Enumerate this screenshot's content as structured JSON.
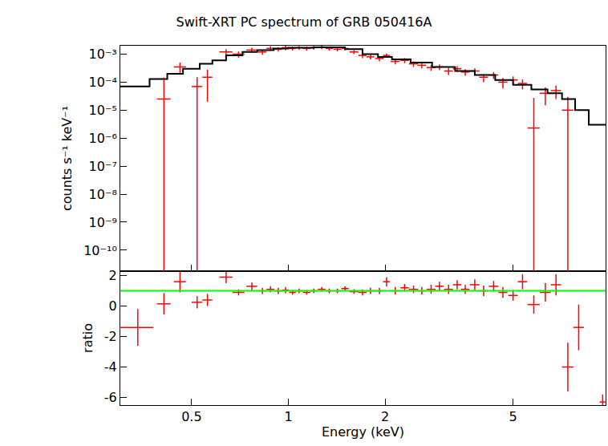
{
  "chart_data": [
    {
      "type": "scatter",
      "title": "Swift-XRT PC spectrum of GRB 050416A",
      "y_label": "counts s⁻¹ keV⁻¹",
      "log": true,
      "tick_labels": "y",
      "xlim": [
        0.3,
        9.7
      ],
      "ylim": [
        1.8e-11,
        0.002
      ],
      "xticks": [
        0.5,
        1,
        2,
        5
      ],
      "yticks": [
        {
          "value": 1e-10,
          "label": "10⁻¹⁰"
        },
        {
          "value": 1e-09,
          "label": "10⁻⁹"
        },
        {
          "value": 1e-08,
          "label": "10⁻⁸"
        },
        {
          "value": 1e-07,
          "label": "10⁻⁷"
        },
        {
          "value": 1e-06,
          "label": "10⁻⁶"
        },
        {
          "value": 1e-05,
          "label": "10⁻⁵"
        },
        {
          "value": 0.0001,
          "label": "10⁻⁴"
        },
        {
          "value": 0.001,
          "label": "10⁻³"
        }
      ],
      "series": [
        {
          "type": "scatter",
          "marker": "cross",
          "color": "#ff0000",
          "x": [
            0.41,
            0.46,
            0.52,
            0.56,
            0.64,
            0.7,
            0.77,
            0.83,
            0.88,
            0.93,
            0.98,
            1.03,
            1.08,
            1.14,
            1.2,
            1.27,
            1.34,
            1.42,
            1.5,
            1.6,
            1.7,
            1.8,
            1.92,
            2.02,
            2.15,
            2.3,
            2.45,
            2.6,
            2.78,
            2.95,
            3.15,
            3.35,
            3.55,
            3.8,
            4.05,
            4.35,
            4.65,
            5.0,
            5.35,
            5.8,
            6.3,
            6.8,
            7.4
          ],
          "values": [
            2.5e-05,
            0.00035,
            7e-05,
            0.00015,
            0.0012,
            0.001,
            0.0014,
            0.0012,
            0.0016,
            0.0015,
            0.0017,
            0.0016,
            0.0017,
            0.0016,
            0.0017,
            0.0018,
            0.0016,
            0.0015,
            0.0016,
            0.0012,
            0.0009,
            0.0008,
            0.0007,
            0.0009,
            0.00055,
            0.0006,
            0.00045,
            0.0004,
            0.00033,
            0.00035,
            0.00025,
            0.0003,
            0.00023,
            0.00025,
            0.00015,
            0.00018,
            0.0001,
            0.00012,
            9e-05,
            2.3e-06,
            4e-05,
            5e-05,
            1e-05
          ],
          "y_error": [
            0.00012,
            0.00015,
            8e-05,
            0.00013,
            0.0003,
            0.00025,
            0.0003,
            0.00025,
            0.0003,
            0.00025,
            0.0003,
            0.00025,
            0.00025,
            0.00025,
            0.00025,
            0.0003,
            0.00025,
            0.00025,
            0.00025,
            0.0002,
            0.00018,
            0.00015,
            0.00014,
            0.00016,
            0.00012,
            0.00012,
            0.0001,
            9e-05,
            8e-05,
            8e-05,
            7e-05,
            7e-05,
            6e-05,
            6e-05,
            5e-05,
            5e-05,
            4e-05,
            4e-05,
            3.5e-05,
            2.5e-05,
            2.5e-05,
            2.5e-05,
            2e-05
          ],
          "x_error": [
            0.02,
            0.02,
            0.02,
            0.02,
            0.03,
            0.03,
            0.03,
            0.025,
            0.025,
            0.025,
            0.025,
            0.025,
            0.03,
            0.03,
            0.03,
            0.035,
            0.035,
            0.04,
            0.04,
            0.05,
            0.05,
            0.05,
            0.06,
            0.05,
            0.07,
            0.07,
            0.08,
            0.08,
            0.09,
            0.09,
            0.1,
            0.1,
            0.11,
            0.13,
            0.13,
            0.15,
            0.15,
            0.17,
            0.18,
            0.25,
            0.25,
            0.25,
            0.3
          ]
        },
        {
          "type": "line",
          "line_style": "step",
          "color": "#000000",
          "x": [
            0.3,
            0.37,
            0.42,
            0.47,
            0.53,
            0.58,
            0.64,
            0.72,
            0.8,
            0.9,
            1.0,
            1.2,
            1.5,
            1.7,
            1.9,
            2.1,
            2.4,
            2.8,
            3.3,
            3.8,
            4.4,
            5.0,
            5.7,
            6.4,
            7.1,
            7.8,
            8.6,
            9.7
          ],
          "values": [
            7e-05,
            0.00013,
            0.0002,
            0.0003,
            0.00045,
            0.0006,
            0.0009,
            0.0012,
            0.0014,
            0.0016,
            0.0017,
            0.00175,
            0.0015,
            0.001,
            0.0008,
            0.00065,
            0.0005,
            0.00035,
            0.00025,
            0.00018,
            0.00012,
            8e-05,
            5.5e-05,
            4e-05,
            2.5e-05,
            1e-05,
            3e-06,
            3e-06
          ]
        }
      ]
    },
    {
      "type": "scatter",
      "x_label": "Energy (keV)",
      "y_label": "ratio",
      "log": "x",
      "xlim": [
        0.3,
        9.7
      ],
      "ylim": [
        -6.5,
        2.3
      ],
      "xticks": [
        0.5,
        1,
        2,
        5
      ],
      "yticks": [
        -6,
        -4,
        -2,
        0,
        2
      ],
      "series": [
        {
          "type": "scatter",
          "marker": "cross",
          "color": "#ff0000",
          "x": [
            0.34,
            0.41,
            0.46,
            0.52,
            0.56,
            0.64,
            0.7,
            0.77,
            0.83,
            0.88,
            0.93,
            0.98,
            1.03,
            1.08,
            1.14,
            1.2,
            1.27,
            1.34,
            1.42,
            1.5,
            1.6,
            1.7,
            1.8,
            1.92,
            2.02,
            2.15,
            2.3,
            2.45,
            2.6,
            2.78,
            2.95,
            3.15,
            3.35,
            3.55,
            3.8,
            4.05,
            4.35,
            4.65,
            5.0,
            5.35,
            5.8,
            6.3,
            6.8,
            7.4,
            8.0,
            9.5
          ],
          "values": [
            -1.4,
            0.15,
            1.6,
            0.25,
            0.4,
            1.9,
            0.9,
            1.3,
            1.0,
            1.1,
            1.0,
            1.05,
            0.9,
            1.0,
            0.9,
            1.0,
            1.1,
            1.0,
            1.0,
            1.15,
            0.95,
            0.9,
            1.0,
            1.0,
            1.6,
            1.0,
            1.2,
            1.1,
            1.0,
            1.1,
            1.3,
            1.1,
            1.4,
            1.1,
            1.4,
            1.0,
            1.3,
            0.9,
            0.7,
            1.6,
            0.1,
            0.9,
            1.4,
            -4.0,
            -1.4,
            -6.3
          ],
          "y_error": [
            1.2,
            0.7,
            0.7,
            0.4,
            0.4,
            0.4,
            0.2,
            0.25,
            0.2,
            0.2,
            0.2,
            0.2,
            0.15,
            0.15,
            0.15,
            0.15,
            0.15,
            0.15,
            0.15,
            0.15,
            0.15,
            0.2,
            0.2,
            0.2,
            0.3,
            0.25,
            0.25,
            0.25,
            0.25,
            0.3,
            0.3,
            0.3,
            0.3,
            0.3,
            0.35,
            0.35,
            0.35,
            0.35,
            0.35,
            0.5,
            0.6,
            0.6,
            0.7,
            1.6,
            1.5,
            0.5
          ],
          "x_error": [
            0.04,
            0.02,
            0.02,
            0.02,
            0.02,
            0.03,
            0.03,
            0.03,
            0.025,
            0.025,
            0.025,
            0.025,
            0.025,
            0.03,
            0.03,
            0.03,
            0.035,
            0.035,
            0.04,
            0.04,
            0.05,
            0.05,
            0.05,
            0.06,
            0.05,
            0.07,
            0.07,
            0.08,
            0.08,
            0.09,
            0.09,
            0.1,
            0.1,
            0.11,
            0.13,
            0.13,
            0.15,
            0.15,
            0.17,
            0.18,
            0.25,
            0.25,
            0.25,
            0.3,
            0.3,
            0.2
          ]
        },
        {
          "type": "line",
          "line_style": "solid",
          "color": "#00ff00",
          "x": [
            0.3,
            9.7
          ],
          "values": [
            1,
            1
          ]
        }
      ]
    }
  ]
}
